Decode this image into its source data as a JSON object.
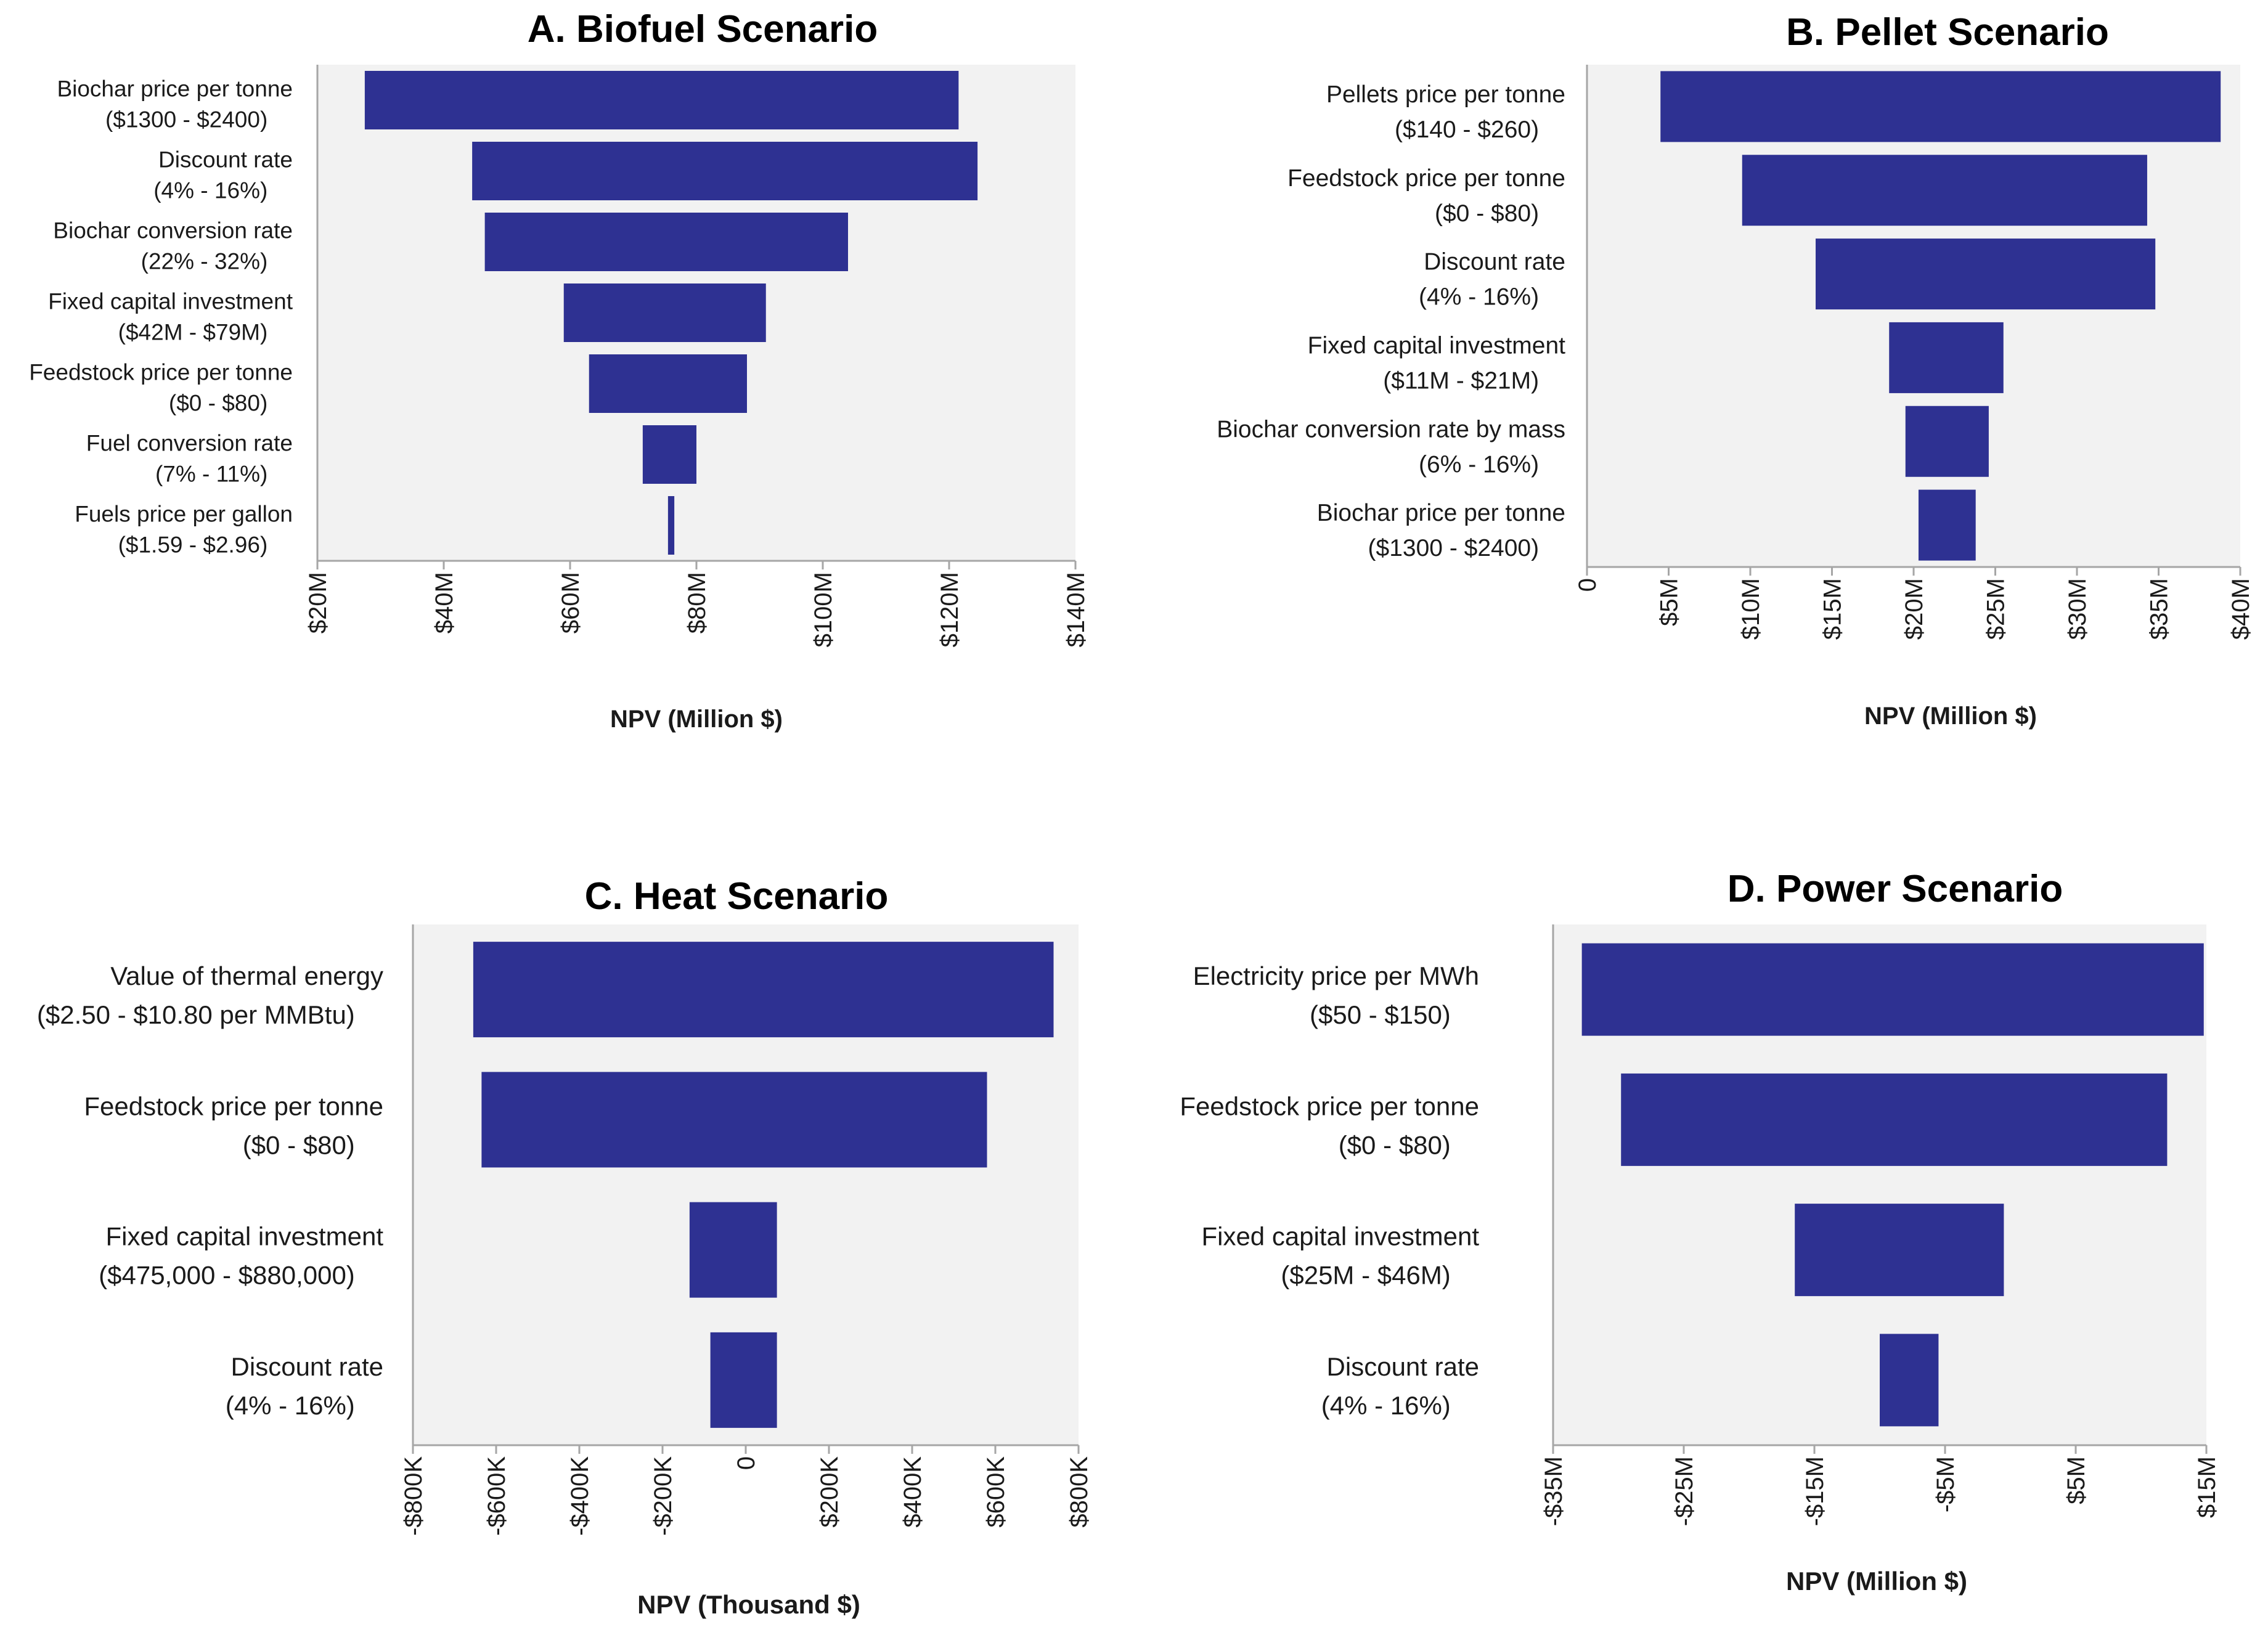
{
  "figure": {
    "bar_color": "#2e3192",
    "plot_background": "#f2f2f2",
    "axis_color": "#a6a6a6"
  },
  "chart_data": [
    {
      "id": "biofuel",
      "type": "bar",
      "orientation": "horizontal",
      "style": "tornado",
      "title": "A. Biofuel Scenario",
      "xlabel": "NPV (Million $)",
      "xlim": [
        20,
        140
      ],
      "xticks": [
        {
          "value": 20,
          "label": "$20M"
        },
        {
          "value": 40,
          "label": "$40M"
        },
        {
          "value": 60,
          "label": "$60M"
        },
        {
          "value": 80,
          "label": "$80M"
        },
        {
          "value": 100,
          "label": "$100M"
        },
        {
          "value": 120,
          "label": "$120M"
        },
        {
          "value": 140,
          "label": "$140M"
        }
      ],
      "bars": [
        {
          "label": "Biochar price per tonne",
          "range": "($1300 - $2400)",
          "low": 27.5,
          "high": 121.5
        },
        {
          "label": "Discount rate",
          "range": "(4% - 16%)",
          "low": 44.5,
          "high": 124.5
        },
        {
          "label": "Biochar conversion rate",
          "range": "(22% - 32%)",
          "low": 46.5,
          "high": 104
        },
        {
          "label": "Fixed capital investment",
          "range": "($42M - $79M)",
          "low": 59,
          "high": 91
        },
        {
          "label": "Feedstock price per tonne",
          "range": "($0 - $80)",
          "low": 63,
          "high": 88
        },
        {
          "label": "Fuel conversion rate",
          "range": "(7% - 11%)",
          "low": 71.5,
          "high": 80
        },
        {
          "label": "Fuels price per gallon",
          "range": "($1.59 - $2.96)",
          "low": 75.5,
          "high": 76.5
        }
      ]
    },
    {
      "id": "pellet",
      "type": "bar",
      "orientation": "horizontal",
      "style": "tornado",
      "title": "B. Pellet Scenario",
      "xlabel": "NPV (Million $)",
      "xlim": [
        0,
        40
      ],
      "xticks": [
        {
          "value": 0,
          "label": "0"
        },
        {
          "value": 5,
          "label": "$5M"
        },
        {
          "value": 10,
          "label": "$10M"
        },
        {
          "value": 15,
          "label": "$15M"
        },
        {
          "value": 20,
          "label": "$20M"
        },
        {
          "value": 25,
          "label": "$25M"
        },
        {
          "value": 30,
          "label": "$30M"
        },
        {
          "value": 35,
          "label": "$35M"
        },
        {
          "value": 40,
          "label": "$40M"
        }
      ],
      "bars": [
        {
          "label": "Pellets price per tonne",
          "range": "($140 - $260)",
          "low": 4.5,
          "high": 38.8
        },
        {
          "label": "Feedstock price per tonne",
          "range": "($0 - $80)",
          "low": 9.5,
          "high": 34.3
        },
        {
          "label": "Discount rate",
          "range": "(4% - 16%)",
          "low": 14,
          "high": 34.8
        },
        {
          "label": "Fixed capital investment",
          "range": "($11M - $21M)",
          "low": 18.5,
          "high": 25.5
        },
        {
          "label": "Biochar conversion rate by mass",
          "range": "(6% - 16%)",
          "low": 19.5,
          "high": 24.6
        },
        {
          "label": "Biochar price per tonne",
          "range": "($1300 - $2400)",
          "low": 20.3,
          "high": 23.8
        }
      ]
    },
    {
      "id": "heat",
      "type": "bar",
      "orientation": "horizontal",
      "style": "tornado",
      "title": "C. Heat Scenario",
      "xlabel": "NPV (Thousand $)",
      "xlim": [
        -800,
        800
      ],
      "xticks": [
        {
          "value": -800,
          "label": "-$800K"
        },
        {
          "value": -600,
          "label": "-$600K"
        },
        {
          "value": -400,
          "label": "-$400K"
        },
        {
          "value": -200,
          "label": "-$200K"
        },
        {
          "value": 0,
          "label": "0"
        },
        {
          "value": 200,
          "label": "$200K"
        },
        {
          "value": 400,
          "label": "$400K"
        },
        {
          "value": 600,
          "label": "$600K"
        },
        {
          "value": 800,
          "label": "$800K"
        }
      ],
      "bars": [
        {
          "label": "Value of thermal energy",
          "range": "($2.50 - $10.80 per MMBtu)",
          "low": -655,
          "high": 740
        },
        {
          "label": "Feedstock price per tonne",
          "range": "($0 - $80)",
          "low": -635,
          "high": 580
        },
        {
          "label": "Fixed capital investment",
          "range": "($475,000 - $880,000)",
          "low": -135,
          "high": 75
        },
        {
          "label": "Discount rate",
          "range": "(4% - 16%)",
          "low": -85,
          "high": 75
        }
      ]
    },
    {
      "id": "power",
      "type": "bar",
      "orientation": "horizontal",
      "style": "tornado",
      "title": "D. Power Scenario",
      "xlabel": "NPV (Million $)",
      "xlim": [
        -35,
        15
      ],
      "xticks": [
        {
          "value": -35,
          "label": "-$35M"
        },
        {
          "value": -25,
          "label": "-$25M"
        },
        {
          "value": -15,
          "label": "-$15M"
        },
        {
          "value": -5,
          "label": "-$5M"
        },
        {
          "value": 5,
          "label": "$5M"
        },
        {
          "value": 15,
          "label": "$15M"
        }
      ],
      "bars": [
        {
          "label": "Electricity price per MWh",
          "range": "($50 - $150)",
          "low": -32.8,
          "high": 14.8
        },
        {
          "label": "Feedstock price per tonne",
          "range": "($0 - $80)",
          "low": -29.8,
          "high": 12
        },
        {
          "label": "Fixed capital investment",
          "range": "($25M - $46M)",
          "low": -16.5,
          "high": -0.5
        },
        {
          "label": "Discount rate",
          "range": "(4% - 16%)",
          "low": -10,
          "high": -5.5
        }
      ]
    }
  ]
}
